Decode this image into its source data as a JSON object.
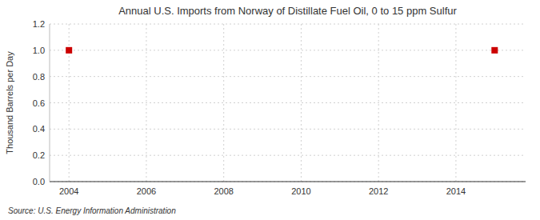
{
  "chart_data": {
    "type": "scatter",
    "title": "Annual U.S. Imports from Norway of Distillate Fuel Oil, 0 to 15 ppm Sulfur",
    "ylabel": "Thousand Barrels per Day",
    "source": "Source: U.S. Energy Information Administration",
    "x": [
      2004,
      2015
    ],
    "values": [
      1.0,
      1.0
    ],
    "color": "#cc0000",
    "marker": "square",
    "grid": true,
    "xlim": [
      2003.5,
      2015.8
    ],
    "ylim": [
      0.0,
      1.2
    ],
    "xticks": [
      2004,
      2006,
      2008,
      2010,
      2012,
      2014
    ],
    "yticks": [
      {
        "value": 0.0,
        "label": "0.0"
      },
      0.2,
      0.4,
      0.6,
      0.8,
      {
        "value": 1.0,
        "label": "1.0"
      },
      1.2
    ]
  }
}
